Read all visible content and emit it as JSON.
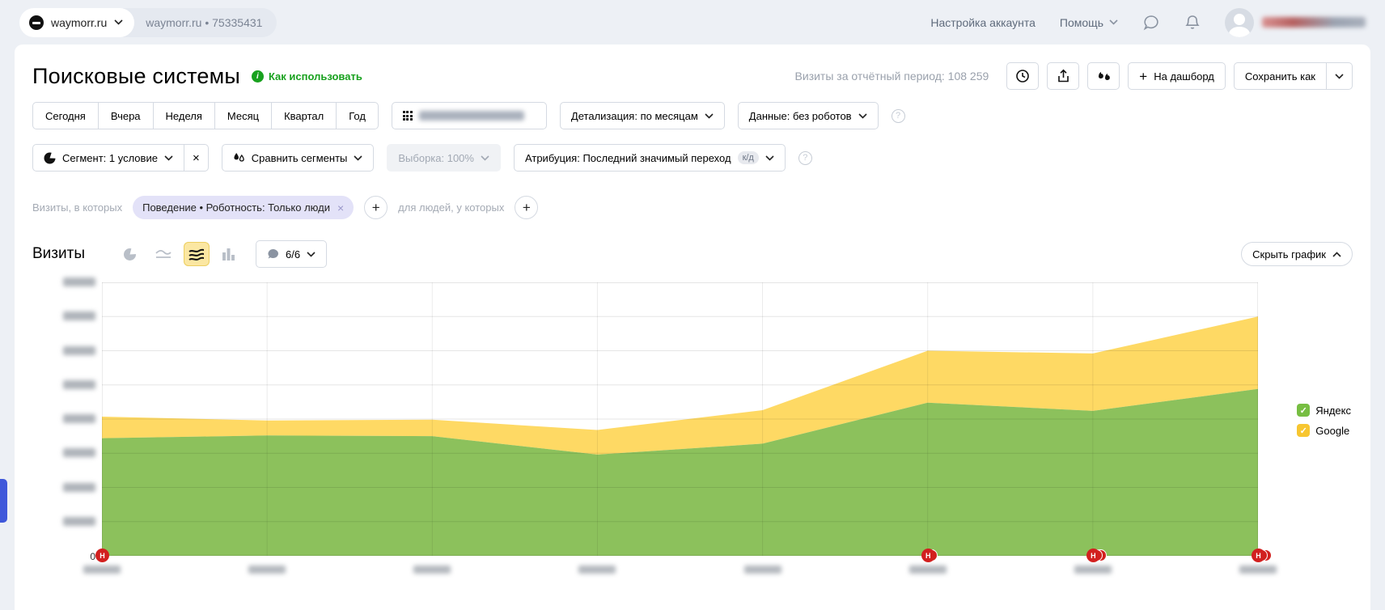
{
  "topbar": {
    "counter_name": "waymorr.ru",
    "counter_info": "waymorr.ru  •  75335431",
    "account_settings": "Настройка аккаунта",
    "help": "Помощь"
  },
  "header": {
    "title": "Поисковые системы",
    "how_to_use": "Как использовать",
    "visits_period": "Визиты за отчётный период: 108 259",
    "dashboard_button": "На дашборд",
    "save_as_button": "Сохранить как"
  },
  "filters": {
    "periods": [
      "Сегодня",
      "Вчера",
      "Неделя",
      "Месяц",
      "Квартал",
      "Год"
    ],
    "date_range_redacted": true,
    "detail": "Детализация: по месяцам",
    "data_mode": "Данные: без роботов",
    "segment": "Сегмент: 1 условие",
    "compare": "Сравнить сегменты",
    "sampling": "Выборка: 100%",
    "attribution": "Атрибуция: Последний значимый переход",
    "attribution_badge": "к/д"
  },
  "segment_builder": {
    "visits_label": "Визиты, в которых",
    "chip": "Поведение • Роботность: Только люди",
    "people_label": "для людей, у которых"
  },
  "chart_header": {
    "metric": "Визиты",
    "series_count": "6/6",
    "hide_chart": "Скрыть график"
  },
  "icons": {
    "plus": "+",
    "close": "×",
    "check": "✓",
    "question": "?"
  },
  "colors": {
    "link_green": "#18a11e",
    "marker_red": "#d2201f",
    "chip_bg": "#e3e2f8",
    "selected_icon_bg": "#fbe7a2",
    "page_bg": "#edf0f5"
  },
  "chart_data": {
    "type": "area",
    "stacked": true,
    "title": "Визиты",
    "x_ticks": 8,
    "x_labels_redacted": true,
    "y_labels_redacted": true,
    "ylim": [
      0,
      20000
    ],
    "y_step": 2500,
    "y_zero_label": "0",
    "grid": true,
    "legend_position": "right",
    "series": [
      {
        "name": "Яндекс",
        "color": "#8cc15c",
        "checkbox_color": "#77be42",
        "values": [
          8600,
          8800,
          8750,
          7400,
          8200,
          11200,
          10600,
          12200
        ]
      },
      {
        "name": "Google",
        "color": "#fed964",
        "checkbox_color": "#f7c630",
        "values": [
          1580,
          1100,
          1200,
          1800,
          2450,
          3800,
          4200,
          5300
        ]
      }
    ],
    "markers": [
      {
        "tick": 0,
        "count": 1,
        "label": "Н"
      },
      {
        "tick": 5,
        "count": 2,
        "label": "Н"
      },
      {
        "tick": 6,
        "count": 3,
        "label": "Н"
      },
      {
        "tick": 7,
        "count": 3,
        "label": "Н"
      }
    ]
  }
}
